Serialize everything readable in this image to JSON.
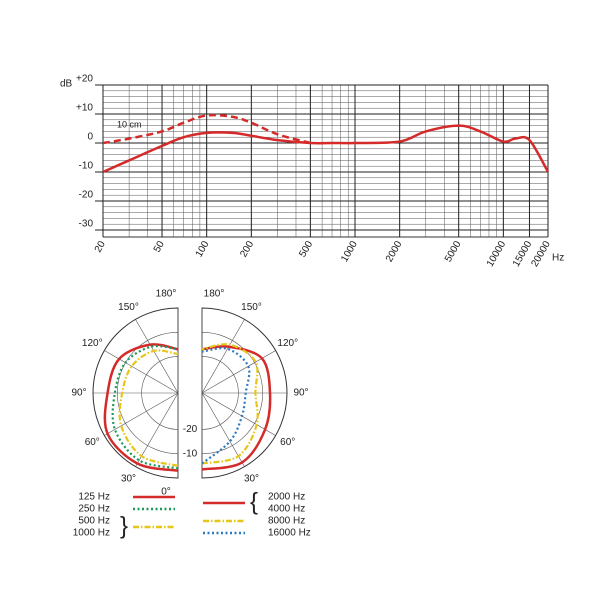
{
  "chart_data": [
    {
      "type": "line",
      "log_x": true,
      "grid": true,
      "ylabel": "dB",
      "xlabel": "Hz",
      "xlim": [
        20,
        20000
      ],
      "xticks": [
        20,
        50,
        100,
        200,
        500,
        1000,
        2000,
        5000,
        10000,
        15000,
        20000
      ],
      "ylim": [
        -30,
        20
      ],
      "yticks": [
        -30,
        -20,
        -10,
        0,
        {
          "value": 10,
          "label": "+10"
        },
        {
          "value": 20,
          "label": "+20"
        }
      ],
      "x": [
        20,
        30,
        50,
        70,
        100,
        150,
        200,
        300,
        500,
        700,
        1000,
        2000,
        3000,
        5000,
        7000,
        10000,
        12000,
        15000,
        20000
      ],
      "series": [
        {
          "color": "#d42a2a",
          "dashed": false,
          "values": [
            -10,
            -6,
            -1,
            2,
            3.5,
            3.5,
            2.5,
            1,
            0,
            0,
            0,
            0.5,
            4,
            6,
            4,
            0.5,
            1.5,
            1,
            -10
          ]
        },
        {
          "name": "10 cm",
          "color": "#d42a2a",
          "dashed": true,
          "values": [
            0,
            1.5,
            4,
            7,
            9.5,
            9,
            7,
            3,
            0,
            null,
            null,
            null,
            null,
            null,
            null,
            null,
            null,
            null,
            null
          ]
        }
      ]
    },
    {
      "type": "polar",
      "angles": [
        {
          "value": 0,
          "label": "0°"
        },
        {
          "value": 30,
          "label": "30°"
        },
        {
          "value": 60,
          "label": "60°"
        },
        {
          "value": 90,
          "label": "90°"
        },
        {
          "value": 120,
          "label": "120°"
        },
        {
          "value": 150,
          "label": "150°"
        },
        {
          "value": 180,
          "label": "180°"
        }
      ],
      "rlim": [
        -35,
        0
      ],
      "rticks": [
        -20,
        -10
      ],
      "series": [
        {
          "names": [
            "125 Hz"
          ],
          "side": "left",
          "color": "#d42a2a",
          "style": "solid",
          "values": [
            -3,
            -1.5,
            -1.5,
            -6,
            -7,
            -12,
            -17
          ]
        },
        {
          "names": [
            "250 Hz"
          ],
          "side": "left",
          "color": "#1a9a5a",
          "style": "dotted",
          "values": [
            -4,
            -3,
            -5,
            -9,
            -10,
            -13,
            -17
          ]
        },
        {
          "names": [
            "500 Hz",
            "1000 Hz"
          ],
          "side": "left",
          "color": "#e6c619",
          "style": "dashdot",
          "values": [
            -5,
            -5,
            -8,
            -12,
            -13,
            -15,
            -19
          ]
        },
        {
          "names": [
            "2000 Hz",
            "4000 Hz"
          ],
          "side": "right",
          "color": "#d42a2a",
          "style": "solid",
          "values": [
            -3.5,
            -2,
            -5,
            -7,
            -6.5,
            -13,
            -17
          ]
        },
        {
          "names": [
            "8000 Hz"
          ],
          "side": "right",
          "color": "#e6c619",
          "style": "dashdot",
          "values": [
            -6,
            -5,
            -9,
            -13,
            -9.5,
            -12,
            -17
          ]
        },
        {
          "names": [
            "16000 Hz"
          ],
          "side": "right",
          "color": "#2a7ac0",
          "style": "dotted",
          "values": [
            -6,
            -12,
            -16,
            -17,
            -13,
            -14,
            -18
          ]
        }
      ]
    }
  ]
}
